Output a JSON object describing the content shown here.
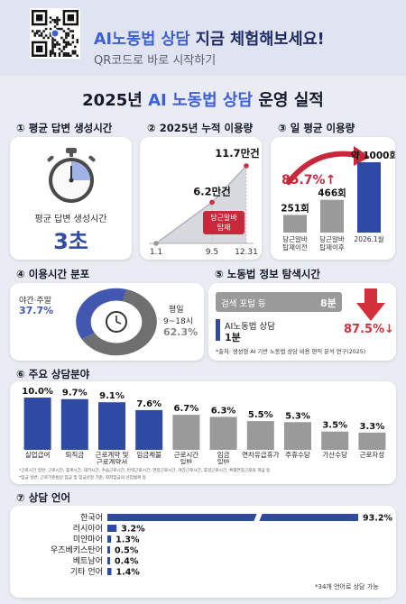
{
  "header": {
    "headline_part1": "AI노동법 상담",
    "headline_part2": " 지금 체험해보세요!",
    "subline": "QR코드로 바로 시작하기"
  },
  "title": {
    "year": "2025년 ",
    "highlight": "AI 노동법 상담",
    "rest": " 운영 실적"
  },
  "sec1": {
    "title": "① 평균 답변 생성시간",
    "label": "평균 답변 생성시간",
    "value": "3초",
    "icon": "stopwatch-icon"
  },
  "sec2": {
    "title": "② 2025년 누적 이용량",
    "chart_data": {
      "type": "area",
      "title": "",
      "xlabel": "",
      "ylabel": "",
      "x": [
        "1.1",
        "9.5",
        "12.31"
      ],
      "values": [
        0,
        6.2,
        11.7
      ],
      "value_labels": [
        "",
        "6.2만건",
        "11.7만건"
      ]
    },
    "callout": [
      "당근알바",
      "탑재"
    ],
    "callout_color": "#c8283a"
  },
  "sec3": {
    "title": "③ 일 평균 이용량",
    "chart_data": {
      "type": "bar",
      "title": "",
      "xlabel": "",
      "ylabel": "",
      "categories": [
        "당근알바 탑재이전",
        "당근알바 탑재이후",
        "2026.1월"
      ],
      "category_lines": [
        [
          "당근알바",
          "탑재이전"
        ],
        [
          "당근알바",
          "탑재이후"
        ],
        [
          "2026.1월"
        ]
      ],
      "values": [
        251,
        466,
        1000
      ],
      "value_labels": [
        "251회",
        "466회",
        "약 1000회"
      ]
    },
    "growth": "85.7%",
    "growth_arrow": "↑",
    "accent": "#c8283a"
  },
  "sec4": {
    "title": "④ 이용시간 분포",
    "chart_data": {
      "type": "pie",
      "title": "",
      "slices": [
        {
          "label": "평일 9~18시",
          "value": 62.3,
          "label_lines": [
            "평일",
            "9~18시"
          ],
          "value_label": "62.3%"
        },
        {
          "label": "야간·주말",
          "value": 37.7,
          "label_lines": [
            "야간·주말"
          ],
          "value_label": "37.7%"
        }
      ]
    },
    "icon": "clock-icon"
  },
  "sec5": {
    "title": "⑤ 노동법 정보 탐색시간",
    "chart_data": {
      "type": "bar",
      "title": "",
      "categories": [
        "검색 포털 등",
        "AI노동법 상담"
      ],
      "values": [
        8,
        1
      ],
      "value_labels": [
        "8분",
        "1분"
      ]
    },
    "reduction": "87.5%",
    "reduction_arrow": "↓",
    "note": "*출처: 생성형 AI 기반 노동법 상담 비용 편익 분석 연구(2025)"
  },
  "sec6": {
    "title": "⑥ 주요 상담분야",
    "chart_data": {
      "type": "bar",
      "title": "",
      "xlabel": "",
      "ylabel": "",
      "categories": [
        "실업급여",
        "퇴직금",
        "근로계약 및 근로계약서",
        "임금체불",
        "근로시간 일반",
        "임금 일반",
        "연차유급휴가",
        "주휴수당",
        "가산수당",
        "근로자성"
      ],
      "category_lines": [
        [
          "실업급여"
        ],
        [
          "퇴직금"
        ],
        [
          "근로계약 및",
          "근로계약서"
        ],
        [
          "임금체불"
        ],
        [
          "근로시간",
          "일반"
        ],
        [
          "임금",
          "일반"
        ],
        [
          "연차유급휴가"
        ],
        [
          "주휴수당"
        ],
        [
          "가산수당"
        ],
        [
          "근로자성"
        ]
      ],
      "values": [
        10.0,
        9.7,
        9.1,
        7.6,
        6.7,
        6.3,
        5.5,
        5.3,
        3.5,
        3.3
      ],
      "value_labels": [
        "10.0%",
        "9.7%",
        "9.1%",
        "7.6%",
        "6.7%",
        "6.3%",
        "5.5%",
        "5.3%",
        "3.5%",
        "3.3%"
      ],
      "colors": [
        "#2e4aa3",
        "#2e4aa3",
        "#2e4aa3",
        "#2e4aa3",
        "#9a9a9a",
        "#9a9a9a",
        "#9a9a9a",
        "#9a9a9a",
        "#9a9a9a",
        "#9a9a9a"
      ]
    },
    "footnotes": [
      "*근로시간 일반: 근로시간, 휴게시간, 대기시간, 수습근로시간, 탄력근로시간, 연장근로시간, 야간근로시간, 휴일근로시간, 특별연장근로의 개념 등",
      "*임금 일반: 근로기준법상 임금 및 임금산정 기준, 최저임금의 산입범위 등"
    ]
  },
  "sec7": {
    "title": "⑦ 상담 언어",
    "chart_data": {
      "type": "bar",
      "title": "",
      "categories": [
        "한국어",
        "러시아어",
        "미얀마어",
        "우즈베키스탄어",
        "베트남어",
        "기타 언어"
      ],
      "values": [
        93.2,
        3.2,
        1.3,
        0.5,
        0.4,
        1.4
      ],
      "value_labels": [
        "93.2%",
        "3.2%",
        "1.3%",
        "0.5%",
        "0.4%",
        "1.4%"
      ]
    },
    "note": "*34개 언어로 상담 가능"
  },
  "colors": {
    "blue": "#2e4aa3",
    "gray": "#9a9a9a",
    "red": "#c8283a"
  }
}
